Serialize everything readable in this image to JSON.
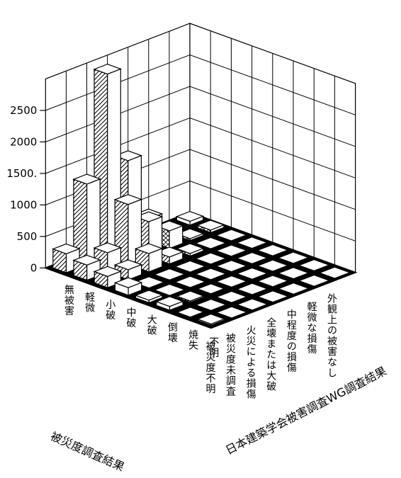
{
  "chart_data": {
    "type": "bar3d",
    "zlim": [
      0,
      2500
    ],
    "zticks": [
      "0",
      "500",
      "1000",
      "1500.",
      "2000",
      "2500"
    ],
    "rows_title": "被災度調査結果",
    "cols_title": "日本建築学会被害調査WG調査結果",
    "rows": [
      "外観上の被害なし",
      "軽微な損傷",
      "中程度の損傷",
      "全壊または大破",
      "火災による損傷",
      "被災度未調査",
      "被災度不明"
    ],
    "cols": [
      "不明",
      "焼失",
      "倒壊",
      "大破",
      "中破",
      "小破",
      "軽微",
      "無被害"
    ],
    "values": [
      [
        0,
        0,
        0,
        0,
        0,
        0,
        40,
        60
      ],
      [
        0,
        0,
        0,
        0,
        0,
        0,
        30,
        20
      ],
      [
        0,
        0,
        0,
        0,
        0,
        40,
        280,
        350
      ],
      [
        0,
        0,
        0,
        0,
        0,
        110,
        550,
        1400
      ],
      [
        0,
        0,
        10,
        0,
        0,
        290,
        950,
        2900
      ],
      [
        0,
        0,
        20,
        0,
        0,
        160,
        310,
        1280
      ],
      [
        20,
        10,
        60,
        40,
        120,
        180,
        240,
        300
      ]
    ]
  }
}
